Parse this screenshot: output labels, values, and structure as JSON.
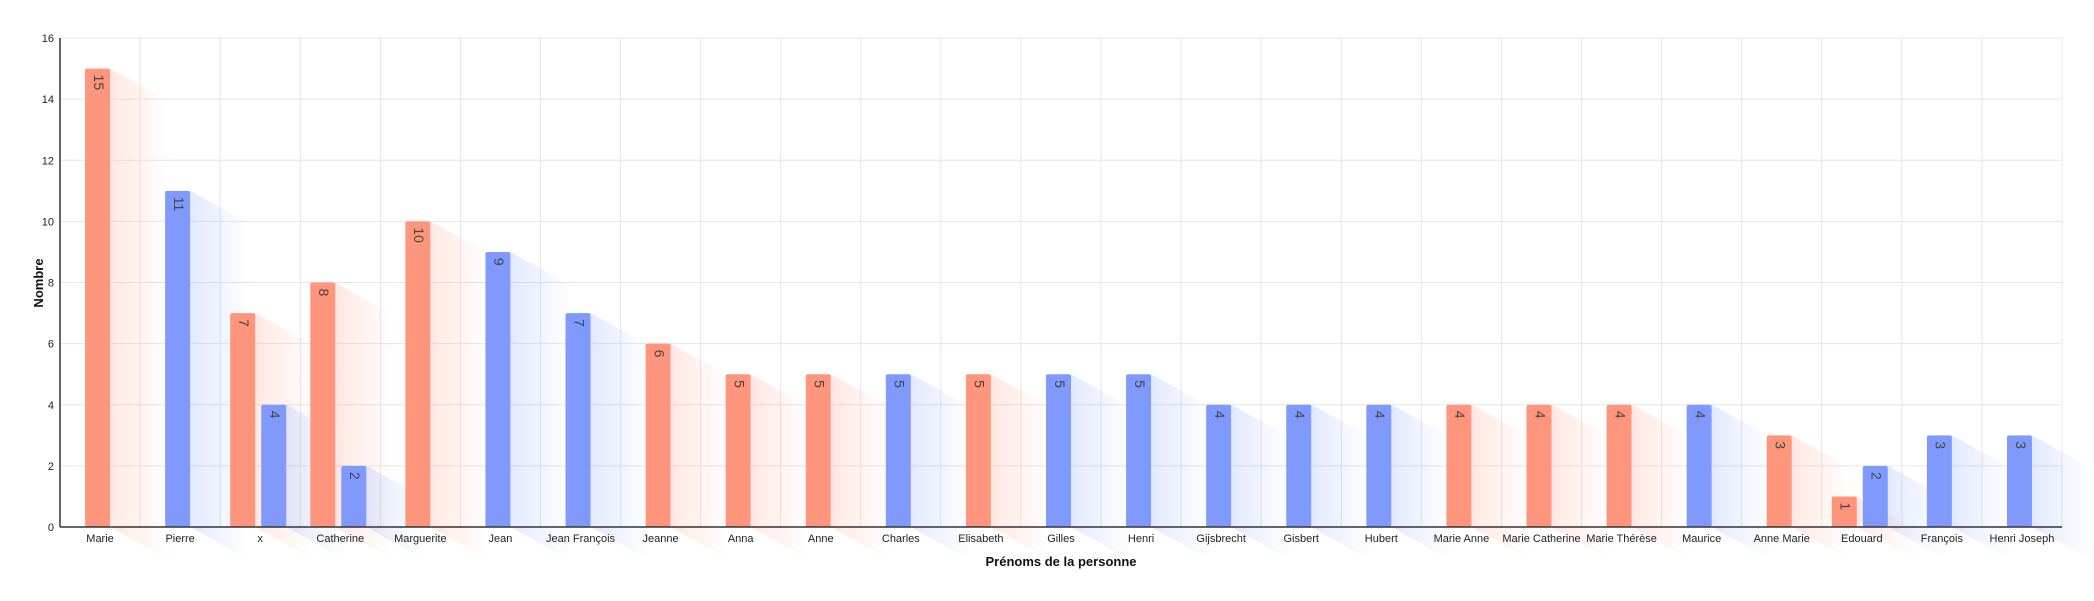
{
  "chart_data": {
    "type": "bar",
    "title": "",
    "xlabel": "Prénoms de la personne",
    "ylabel": "Nombre",
    "ylim": [
      0,
      16
    ],
    "yticks": [
      0,
      2,
      4,
      6,
      8,
      10,
      12,
      14,
      16
    ],
    "grid": true,
    "legend": "none",
    "colors": {
      "female": "#ff957c",
      "male": "#7f9afc"
    },
    "categories": [
      "Marie",
      "Pierre",
      "x",
      "Catherine",
      "Marguerite",
      "Jean",
      "Jean François",
      "Jeanne",
      "Anna",
      "Anne",
      "Charles",
      "Elisabeth",
      "Gilles",
      "Henri",
      "Gijsbrecht",
      "Gisbert",
      "Hubert",
      "Marie Anne",
      "Marie Catherine",
      "Marie Thérèse",
      "Maurice",
      "Anne Marie",
      "Edouard",
      "François",
      "Henri Joseph"
    ],
    "series": [
      {
        "key": "female",
        "values": [
          15,
          0,
          7,
          8,
          10,
          0,
          0,
          6,
          5,
          5,
          0,
          5,
          0,
          0,
          0,
          0,
          0,
          4,
          4,
          4,
          0,
          3,
          1,
          0,
          0
        ]
      },
      {
        "key": "male",
        "values": [
          0,
          11,
          4,
          2,
          0,
          9,
          7,
          0,
          0,
          0,
          5,
          0,
          5,
          5,
          4,
          4,
          4,
          0,
          0,
          0,
          4,
          0,
          2,
          3,
          3
        ]
      }
    ]
  }
}
